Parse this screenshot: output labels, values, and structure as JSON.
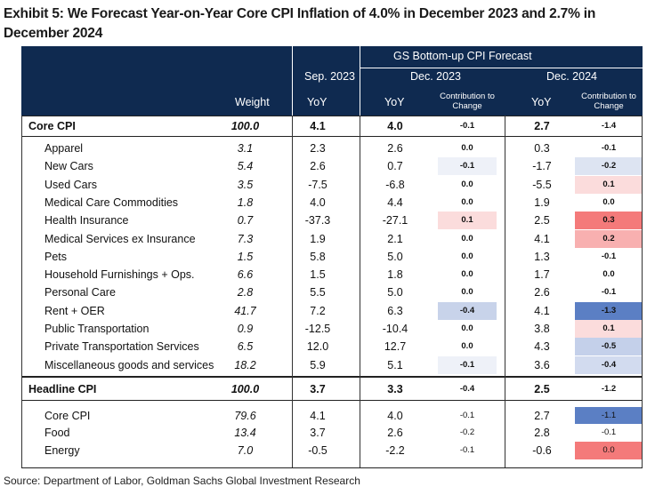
{
  "title": "Exhibit 5: We Forecast Year-on-Year Core CPI Inflation of 4.0% in December 2023 and 2.7% in December 2024",
  "header": {
    "weight": "Weight",
    "sep": "Sep. 2023",
    "sep_yoy": "YoY",
    "forecast": "GS Bottom-up CPI Forecast",
    "dec23": "Dec. 2023",
    "dec23_yoy": "YoY",
    "dec23_contrib": "Contribution to Change",
    "dec24": "Dec. 2024",
    "dec24_yoy": "YoY",
    "dec24_contrib": "Contribution to Change"
  },
  "core": {
    "label": "Core CPI",
    "weight": "100.0",
    "sep": "4.1",
    "dec23": "4.0",
    "c23": "-0.1",
    "dec24": "2.7",
    "c24": "-1.4",
    "components": [
      {
        "label": "Apparel",
        "weight": "3.1",
        "sep": "2.3",
        "dec23": "2.6",
        "c23": "0.0",
        "dec24": "0.3",
        "c24": "-0.1",
        "c23_color": "#ffffff",
        "c24_color": "#ffffff"
      },
      {
        "label": "New Cars",
        "weight": "5.4",
        "sep": "2.6",
        "dec23": "0.7",
        "c23": "-0.1",
        "dec24": "-1.7",
        "c24": "-0.2",
        "c23_color": "#eef1f8",
        "c24_color": "#dde4f2"
      },
      {
        "label": "Used Cars",
        "weight": "3.5",
        "sep": "-7.5",
        "dec23": "-6.8",
        "c23": "0.0",
        "dec24": "-5.5",
        "c24": "0.1",
        "c23_color": "#ffffff",
        "c24_color": "#fbdcdc"
      },
      {
        "label": "Medical Care Commodities",
        "weight": "1.8",
        "sep": "4.0",
        "dec23": "4.4",
        "c23": "0.0",
        "dec24": "1.9",
        "c24": "0.0",
        "c23_color": "#ffffff",
        "c24_color": "#ffffff"
      },
      {
        "label": "Health Insurance",
        "weight": "0.7",
        "sep": "-37.3",
        "dec23": "-27.1",
        "c23": "0.1",
        "dec24": "2.5",
        "c24": "0.3",
        "c23_color": "#fbdcdc",
        "c24_color": "#f47a7a"
      },
      {
        "label": "Medical Services ex Insurance",
        "weight": "7.3",
        "sep": "1.9",
        "dec23": "2.1",
        "c23": "0.0",
        "dec24": "4.1",
        "c24": "0.2",
        "c23_color": "#ffffff",
        "c24_color": "#f8b0b0"
      },
      {
        "label": "Pets",
        "weight": "1.5",
        "sep": "5.8",
        "dec23": "5.0",
        "c23": "0.0",
        "dec24": "1.3",
        "c24": "-0.1",
        "c23_color": "#ffffff",
        "c24_color": "#ffffff"
      },
      {
        "label": "Household Furnishings + Ops.",
        "weight": "6.6",
        "sep": "1.5",
        "dec23": "1.8",
        "c23": "0.0",
        "dec24": "1.7",
        "c24": "0.0",
        "c23_color": "#ffffff",
        "c24_color": "#ffffff"
      },
      {
        "label": "Personal Care",
        "weight": "2.8",
        "sep": "5.5",
        "dec23": "5.0",
        "c23": "0.0",
        "dec24": "2.6",
        "c24": "-0.1",
        "c23_color": "#ffffff",
        "c24_color": "#ffffff"
      },
      {
        "label": "Rent + OER",
        "weight": "41.7",
        "sep": "7.2",
        "dec23": "6.3",
        "c23": "-0.4",
        "dec24": "4.1",
        "c24": "-1.3",
        "c23_color": "#c8d3ea",
        "c24_color": "#5b7fc4"
      },
      {
        "label": "Public Transportation",
        "weight": "0.9",
        "sep": "-12.5",
        "dec23": "-10.4",
        "c23": "0.0",
        "dec24": "3.8",
        "c24": "0.1",
        "c23_color": "#ffffff",
        "c24_color": "#fbdcdc"
      },
      {
        "label": "Private Transportation Services",
        "weight": "6.5",
        "sep": "12.0",
        "dec23": "12.7",
        "c23": "0.0",
        "dec24": "4.3",
        "c24": "-0.5",
        "c23_color": "#ffffff",
        "c24_color": "#c4d0ea"
      },
      {
        "label": "Miscellaneous goods and services",
        "weight": "18.2",
        "sep": "5.9",
        "dec23": "5.1",
        "c23": "-0.1",
        "dec24": "3.6",
        "c24": "-0.4",
        "c23_color": "#eef1f8",
        "c24_color": "#d2dbef"
      }
    ]
  },
  "headline": {
    "label": "Headline CPI",
    "weight": "100.0",
    "sep": "3.7",
    "dec23": "3.3",
    "c23": "-0.4",
    "dec24": "2.5",
    "c24": "-1.2",
    "components": [
      {
        "label": "Core CPI",
        "weight": "79.6",
        "sep": "4.1",
        "dec23": "4.0",
        "c23": "-0.1",
        "dec24": "2.7",
        "c24": "-1.1",
        "c23_color": "#ffffff",
        "c24_color": "#5b7fc4"
      },
      {
        "label": "Food",
        "weight": "13.4",
        "sep": "3.7",
        "dec23": "2.6",
        "c23": "-0.2",
        "dec24": "2.8",
        "c24": "-0.1",
        "c23_color": "#ffffff",
        "c24_color": "#ffffff"
      },
      {
        "label": "Energy",
        "weight": "7.0",
        "sep": "-0.5",
        "dec23": "-2.2",
        "c23": "-0.1",
        "dec24": "-0.6",
        "c24": "0.0",
        "c23_color": "#ffffff",
        "c24_color": "#f47a7a"
      }
    ]
  },
  "source": "Source: Department of Labor, Goldman Sachs Global Investment Research"
}
